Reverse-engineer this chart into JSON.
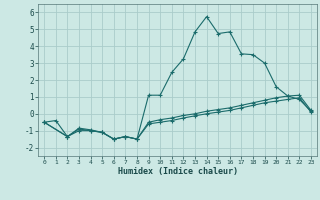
{
  "background_color": "#cce8e4",
  "grid_color": "#aaccca",
  "line_color": "#1a6b6b",
  "marker_color": "#1a6b6b",
  "xlabel": "Humidex (Indice chaleur)",
  "xlim": [
    -0.5,
    23.5
  ],
  "ylim": [
    -2.5,
    6.5
  ],
  "xticks": [
    0,
    1,
    2,
    3,
    4,
    5,
    6,
    7,
    8,
    9,
    10,
    11,
    12,
    13,
    14,
    15,
    16,
    17,
    18,
    19,
    20,
    21,
    22,
    23
  ],
  "yticks": [
    -2,
    -1,
    0,
    1,
    2,
    3,
    4,
    5,
    6
  ],
  "series1_x": [
    0,
    1,
    2,
    3,
    4,
    5,
    6,
    7,
    8,
    9,
    10,
    11,
    12,
    13,
    14,
    15,
    16,
    17,
    18,
    19,
    20,
    21,
    22,
    23
  ],
  "series1_y": [
    -0.5,
    -0.4,
    -1.35,
    -1.0,
    -1.0,
    -1.1,
    -1.5,
    -1.35,
    -1.5,
    1.1,
    1.1,
    2.45,
    3.25,
    4.85,
    5.75,
    4.75,
    4.85,
    3.55,
    3.5,
    3.0,
    1.6,
    1.05,
    0.85,
    0.15
  ],
  "series2_x": [
    0,
    2,
    3,
    4,
    5,
    6,
    7,
    8,
    9,
    10,
    11,
    12,
    13,
    14,
    15,
    16,
    17,
    18,
    19,
    20,
    21,
    22,
    23
  ],
  "series2_y": [
    -0.5,
    -1.35,
    -0.85,
    -0.95,
    -1.1,
    -1.5,
    -1.35,
    -1.5,
    -0.5,
    -0.35,
    -0.25,
    -0.1,
    0.0,
    0.15,
    0.25,
    0.35,
    0.5,
    0.65,
    0.8,
    0.95,
    1.05,
    1.1,
    0.2
  ],
  "series3_x": [
    0,
    2,
    3,
    4,
    5,
    6,
    7,
    8,
    9,
    10,
    11,
    12,
    13,
    14,
    15,
    16,
    17,
    18,
    19,
    20,
    21,
    22,
    23
  ],
  "series3_y": [
    -0.5,
    -1.35,
    -0.9,
    -1.0,
    -1.1,
    -1.5,
    -1.35,
    -1.5,
    -0.6,
    -0.5,
    -0.4,
    -0.25,
    -0.12,
    0.0,
    0.1,
    0.2,
    0.35,
    0.5,
    0.65,
    0.75,
    0.85,
    0.95,
    0.1
  ]
}
